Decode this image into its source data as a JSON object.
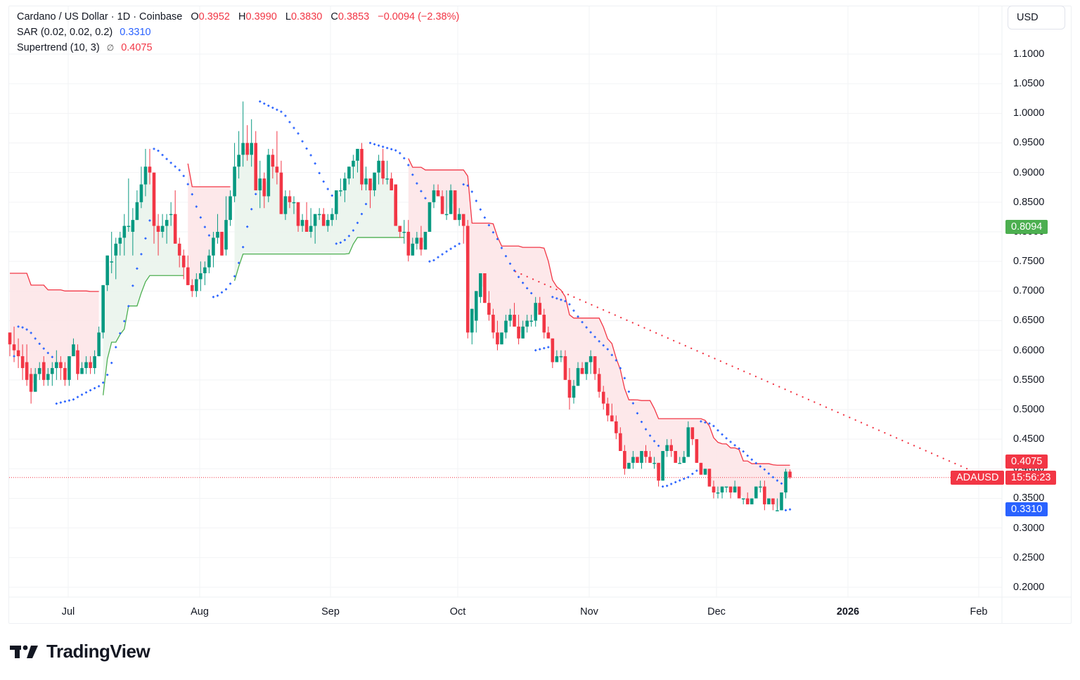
{
  "header": {
    "symbol_title": "Cardano / US Dollar · 1D · Coinbase",
    "ohlc": {
      "o_label": "O",
      "o_value": "0.3952",
      "h_label": "H",
      "h_value": "0.3990",
      "l_label": "L",
      "l_value": "0.3830",
      "c_label": "C",
      "c_value": "0.3853",
      "change": "−0.0094 (−2.38%)"
    }
  },
  "indicators": [
    {
      "name": "SAR (0.02, 0.02, 0.2)",
      "value": "0.3310",
      "icon": ""
    },
    {
      "name": "Supertrend (10, 3)",
      "value": "0.4075",
      "icon": "∅"
    }
  ],
  "currency_button": "USD",
  "price_tags": {
    "supertrend": {
      "value": "0.4075",
      "color": "#f23645"
    },
    "symbol": {
      "label": "ADAUSD",
      "color": "#f23645"
    },
    "countdown": {
      "value": "15:56:23",
      "color": "#f23645"
    },
    "sar": {
      "value": "0.3310",
      "color": "#2962ff"
    },
    "level": {
      "value": "0.8094",
      "color": "#4caf50"
    }
  },
  "colors": {
    "up": "#089981",
    "down": "#f23645",
    "sar": "#2962ff",
    "supertrend_down": "#f23645",
    "supertrend_up": "#4caf50",
    "fill_down": "#fde6e8",
    "fill_up": "#eaf4ec",
    "grid": "#f2f3f5"
  },
  "branding": {
    "logo_text": "TradingView"
  },
  "chart_data": {
    "type": "candlestick",
    "title": "Cardano / US Dollar · 1D · Coinbase",
    "symbol": "ADAUSD",
    "y_axis": {
      "ticks": [
        "1.1000",
        "1.0500",
        "1.0000",
        "0.9500",
        "0.9000",
        "0.8500",
        "0.8000",
        "0.7500",
        "0.7000",
        "0.6500",
        "0.6000",
        "0.5500",
        "0.5000",
        "0.4500",
        "0.4000",
        "0.3500",
        "0.3000",
        "0.2500",
        "0.2000"
      ],
      "range": [
        0.2,
        1.1
      ]
    },
    "x_axis": {
      "ticks": [
        "Jul",
        "Aug",
        "Sep",
        "Oct",
        "Nov",
        "Dec",
        "2026",
        "Feb"
      ]
    },
    "last": {
      "open": 0.3952,
      "high": 0.399,
      "low": 0.383,
      "close": 0.3853,
      "change": -0.0094,
      "change_pct": -2.38
    },
    "indicators": {
      "sar": {
        "params": [
          0.02,
          0.02,
          0.2
        ],
        "last": 0.331
      },
      "supertrend": {
        "params": [
          10,
          3
        ],
        "last": 0.4075
      }
    },
    "annotations": [
      {
        "type": "dotted-trendline",
        "from_price": 0.733,
        "to_price": 0.4,
        "color": "#f23645"
      },
      {
        "type": "price-line",
        "price": 0.3853,
        "color": "#f23645",
        "style": "dotted"
      }
    ],
    "candles_ohlc": [
      [
        0.63,
        0.63,
        0.59,
        0.61
      ],
      [
        0.61,
        0.64,
        0.58,
        0.6
      ],
      [
        0.6,
        0.62,
        0.57,
        0.59
      ],
      [
        0.59,
        0.61,
        0.55,
        0.57
      ],
      [
        0.58,
        0.61,
        0.54,
        0.55
      ],
      [
        0.56,
        0.57,
        0.51,
        0.53
      ],
      [
        0.53,
        0.57,
        0.53,
        0.56
      ],
      [
        0.56,
        0.58,
        0.55,
        0.57
      ],
      [
        0.58,
        0.59,
        0.54,
        0.55
      ],
      [
        0.55,
        0.57,
        0.54,
        0.56
      ],
      [
        0.56,
        0.58,
        0.54,
        0.57
      ],
      [
        0.57,
        0.6,
        0.55,
        0.58
      ],
      [
        0.58,
        0.59,
        0.55,
        0.57
      ],
      [
        0.57,
        0.58,
        0.54,
        0.55
      ],
      [
        0.55,
        0.59,
        0.54,
        0.59
      ],
      [
        0.59,
        0.62,
        0.59,
        0.61
      ],
      [
        0.6,
        0.61,
        0.55,
        0.56
      ],
      [
        0.56,
        0.58,
        0.56,
        0.57
      ],
      [
        0.57,
        0.59,
        0.56,
        0.58
      ],
      [
        0.58,
        0.59,
        0.56,
        0.57
      ],
      [
        0.57,
        0.6,
        0.56,
        0.59
      ],
      [
        0.59,
        0.64,
        0.59,
        0.63
      ],
      [
        0.63,
        0.71,
        0.62,
        0.71
      ],
      [
        0.71,
        0.76,
        0.7,
        0.76
      ],
      [
        0.75,
        0.8,
        0.73,
        0.75
      ],
      [
        0.76,
        0.79,
        0.72,
        0.78
      ],
      [
        0.78,
        0.8,
        0.76,
        0.79
      ],
      [
        0.79,
        0.83,
        0.76,
        0.81
      ],
      [
        0.81,
        0.89,
        0.8,
        0.81
      ],
      [
        0.8,
        0.84,
        0.76,
        0.82
      ],
      [
        0.82,
        0.87,
        0.82,
        0.85
      ],
      [
        0.85,
        0.91,
        0.84,
        0.88
      ],
      [
        0.88,
        0.94,
        0.86,
        0.91
      ],
      [
        0.91,
        0.94,
        0.88,
        0.9
      ],
      [
        0.9,
        0.9,
        0.78,
        0.81
      ],
      [
        0.81,
        0.83,
        0.76,
        0.8
      ],
      [
        0.8,
        0.83,
        0.79,
        0.81
      ],
      [
        0.81,
        0.83,
        0.78,
        0.82
      ],
      [
        0.83,
        0.85,
        0.81,
        0.83
      ],
      [
        0.83,
        0.87,
        0.78,
        0.78
      ],
      [
        0.78,
        0.79,
        0.74,
        0.76
      ],
      [
        0.76,
        0.77,
        0.72,
        0.74
      ],
      [
        0.74,
        0.76,
        0.71,
        0.71
      ],
      [
        0.71,
        0.72,
        0.69,
        0.7
      ],
      [
        0.7,
        0.73,
        0.69,
        0.72
      ],
      [
        0.72,
        0.75,
        0.7,
        0.73
      ],
      [
        0.73,
        0.75,
        0.71,
        0.74
      ],
      [
        0.74,
        0.77,
        0.73,
        0.76
      ],
      [
        0.76,
        0.8,
        0.74,
        0.79
      ],
      [
        0.79,
        0.83,
        0.78,
        0.8
      ],
      [
        0.8,
        0.8,
        0.76,
        0.76
      ],
      [
        0.77,
        0.86,
        0.76,
        0.82
      ],
      [
        0.82,
        0.87,
        0.81,
        0.86
      ],
      [
        0.86,
        0.95,
        0.85,
        0.91
      ],
      [
        0.91,
        0.97,
        0.89,
        0.93
      ],
      [
        0.93,
        1.02,
        0.91,
        0.95
      ],
      [
        0.95,
        0.98,
        0.92,
        0.93
      ],
      [
        0.93,
        0.99,
        0.91,
        0.95
      ],
      [
        0.95,
        0.97,
        0.87,
        0.87
      ],
      [
        0.87,
        0.92,
        0.84,
        0.89
      ],
      [
        0.89,
        0.9,
        0.84,
        0.86
      ],
      [
        0.86,
        0.94,
        0.85,
        0.93
      ],
      [
        0.93,
        0.94,
        0.89,
        0.91
      ],
      [
        0.91,
        0.97,
        0.88,
        0.9
      ],
      [
        0.9,
        0.92,
        0.83,
        0.83
      ],
      [
        0.83,
        0.87,
        0.82,
        0.86
      ],
      [
        0.86,
        0.87,
        0.84,
        0.85
      ],
      [
        0.85,
        0.86,
        0.83,
        0.85
      ],
      [
        0.85,
        0.85,
        0.8,
        0.81
      ],
      [
        0.81,
        0.83,
        0.8,
        0.82
      ],
      [
        0.82,
        0.85,
        0.81,
        0.8
      ],
      [
        0.8,
        0.84,
        0.79,
        0.81
      ],
      [
        0.81,
        0.83,
        0.78,
        0.83
      ],
      [
        0.83,
        0.84,
        0.82,
        0.83
      ],
      [
        0.83,
        0.84,
        0.81,
        0.81
      ],
      [
        0.81,
        0.83,
        0.8,
        0.82
      ],
      [
        0.82,
        0.84,
        0.81,
        0.83
      ],
      [
        0.83,
        0.87,
        0.82,
        0.87
      ],
      [
        0.87,
        0.89,
        0.86,
        0.87
      ],
      [
        0.87,
        0.9,
        0.85,
        0.89
      ],
      [
        0.89,
        0.91,
        0.88,
        0.91
      ],
      [
        0.91,
        0.93,
        0.89,
        0.92
      ],
      [
        0.92,
        0.94,
        0.9,
        0.94
      ],
      [
        0.94,
        0.95,
        0.87,
        0.88
      ],
      [
        0.88,
        0.91,
        0.87,
        0.89
      ],
      [
        0.89,
        0.89,
        0.84,
        0.87
      ],
      [
        0.87,
        0.9,
        0.86,
        0.9
      ],
      [
        0.9,
        0.93,
        0.88,
        0.92
      ],
      [
        0.92,
        0.94,
        0.88,
        0.89
      ],
      [
        0.89,
        0.92,
        0.88,
        0.89
      ],
      [
        0.89,
        0.9,
        0.87,
        0.87
      ],
      [
        0.88,
        0.88,
        0.82,
        0.81
      ],
      [
        0.81,
        0.81,
        0.79,
        0.8
      ],
      [
        0.8,
        0.82,
        0.78,
        0.8
      ],
      [
        0.8,
        0.82,
        0.75,
        0.76
      ],
      [
        0.76,
        0.79,
        0.76,
        0.78
      ],
      [
        0.78,
        0.8,
        0.77,
        0.79
      ],
      [
        0.79,
        0.81,
        0.76,
        0.77
      ],
      [
        0.77,
        0.79,
        0.77,
        0.8
      ],
      [
        0.8,
        0.85,
        0.8,
        0.85
      ],
      [
        0.85,
        0.88,
        0.84,
        0.87
      ],
      [
        0.87,
        0.88,
        0.86,
        0.86
      ],
      [
        0.86,
        0.87,
        0.83,
        0.83
      ],
      [
        0.83,
        0.87,
        0.82,
        0.83
      ],
      [
        0.83,
        0.88,
        0.83,
        0.87
      ],
      [
        0.87,
        0.87,
        0.82,
        0.82
      ],
      [
        0.82,
        0.84,
        0.81,
        0.83
      ],
      [
        0.83,
        0.83,
        0.78,
        0.81
      ],
      [
        0.81,
        0.82,
        0.62,
        0.63
      ],
      [
        0.63,
        0.67,
        0.61,
        0.67
      ],
      [
        0.65,
        0.7,
        0.63,
        0.7
      ],
      [
        0.69,
        0.73,
        0.68,
        0.73
      ],
      [
        0.73,
        0.73,
        0.68,
        0.68
      ],
      [
        0.68,
        0.7,
        0.65,
        0.66
      ],
      [
        0.66,
        0.67,
        0.62,
        0.63
      ],
      [
        0.63,
        0.65,
        0.6,
        0.61
      ],
      [
        0.61,
        0.63,
        0.61,
        0.63
      ],
      [
        0.63,
        0.66,
        0.62,
        0.65
      ],
      [
        0.65,
        0.67,
        0.64,
        0.66
      ],
      [
        0.66,
        0.68,
        0.64,
        0.64
      ],
      [
        0.64,
        0.66,
        0.61,
        0.62
      ],
      [
        0.62,
        0.65,
        0.62,
        0.64
      ],
      [
        0.64,
        0.66,
        0.63,
        0.65
      ],
      [
        0.65,
        0.66,
        0.64,
        0.65
      ],
      [
        0.65,
        0.69,
        0.64,
        0.68
      ],
      [
        0.68,
        0.69,
        0.66,
        0.66
      ],
      [
        0.66,
        0.67,
        0.62,
        0.63
      ],
      [
        0.63,
        0.64,
        0.62,
        0.62
      ],
      [
        0.62,
        0.62,
        0.57,
        0.58
      ],
      [
        0.58,
        0.6,
        0.58,
        0.59
      ],
      [
        0.59,
        0.6,
        0.58,
        0.59
      ],
      [
        0.59,
        0.6,
        0.55,
        0.55
      ],
      [
        0.55,
        0.57,
        0.5,
        0.52
      ],
      [
        0.52,
        0.55,
        0.51,
        0.54
      ],
      [
        0.54,
        0.58,
        0.54,
        0.57
      ],
      [
        0.57,
        0.58,
        0.56,
        0.56
      ],
      [
        0.56,
        0.58,
        0.55,
        0.58
      ],
      [
        0.58,
        0.6,
        0.56,
        0.59
      ],
      [
        0.59,
        0.59,
        0.55,
        0.56
      ],
      [
        0.56,
        0.57,
        0.52,
        0.53
      ],
      [
        0.53,
        0.54,
        0.5,
        0.51
      ],
      [
        0.51,
        0.52,
        0.48,
        0.49
      ],
      [
        0.49,
        0.51,
        0.48,
        0.48
      ],
      [
        0.48,
        0.49,
        0.45,
        0.46
      ],
      [
        0.46,
        0.47,
        0.43,
        0.43
      ],
      [
        0.43,
        0.44,
        0.39,
        0.4
      ],
      [
        0.4,
        0.41,
        0.4,
        0.41
      ],
      [
        0.41,
        0.43,
        0.4,
        0.42
      ],
      [
        0.42,
        0.42,
        0.41,
        0.41
      ],
      [
        0.41,
        0.43,
        0.4,
        0.43
      ],
      [
        0.43,
        0.44,
        0.41,
        0.42
      ],
      [
        0.42,
        0.43,
        0.41,
        0.41
      ],
      [
        0.41,
        0.42,
        0.4,
        0.41
      ],
      [
        0.41,
        0.41,
        0.37,
        0.38
      ],
      [
        0.38,
        0.43,
        0.38,
        0.43
      ],
      [
        0.43,
        0.45,
        0.42,
        0.44
      ],
      [
        0.44,
        0.45,
        0.42,
        0.43
      ],
      [
        0.43,
        0.43,
        0.41,
        0.41
      ],
      [
        0.41,
        0.42,
        0.41,
        0.41
      ],
      [
        0.41,
        0.43,
        0.41,
        0.42
      ],
      [
        0.42,
        0.48,
        0.42,
        0.47
      ],
      [
        0.47,
        0.47,
        0.44,
        0.45
      ],
      [
        0.45,
        0.45,
        0.41,
        0.41
      ],
      [
        0.41,
        0.41,
        0.39,
        0.39
      ],
      [
        0.39,
        0.4,
        0.39,
        0.4
      ],
      [
        0.4,
        0.4,
        0.37,
        0.37
      ],
      [
        0.37,
        0.38,
        0.35,
        0.36
      ],
      [
        0.36,
        0.37,
        0.35,
        0.36
      ],
      [
        0.36,
        0.37,
        0.35,
        0.37
      ],
      [
        0.37,
        0.37,
        0.36,
        0.37
      ],
      [
        0.37,
        0.37,
        0.35,
        0.36
      ],
      [
        0.36,
        0.38,
        0.36,
        0.37
      ],
      [
        0.37,
        0.37,
        0.35,
        0.35
      ],
      [
        0.35,
        0.35,
        0.34,
        0.35
      ],
      [
        0.35,
        0.36,
        0.34,
        0.34
      ],
      [
        0.34,
        0.35,
        0.34,
        0.35
      ],
      [
        0.35,
        0.37,
        0.35,
        0.37
      ],
      [
        0.37,
        0.38,
        0.36,
        0.37
      ],
      [
        0.37,
        0.38,
        0.33,
        0.34
      ],
      [
        0.34,
        0.35,
        0.34,
        0.35
      ],
      [
        0.35,
        0.35,
        0.33,
        0.34
      ],
      [
        0.33,
        0.35,
        0.33,
        0.33
      ],
      [
        0.33,
        0.36,
        0.33,
        0.36
      ],
      [
        0.36,
        0.4,
        0.35,
        0.3952
      ],
      [
        0.3952,
        0.399,
        0.383,
        0.3853
      ]
    ]
  }
}
